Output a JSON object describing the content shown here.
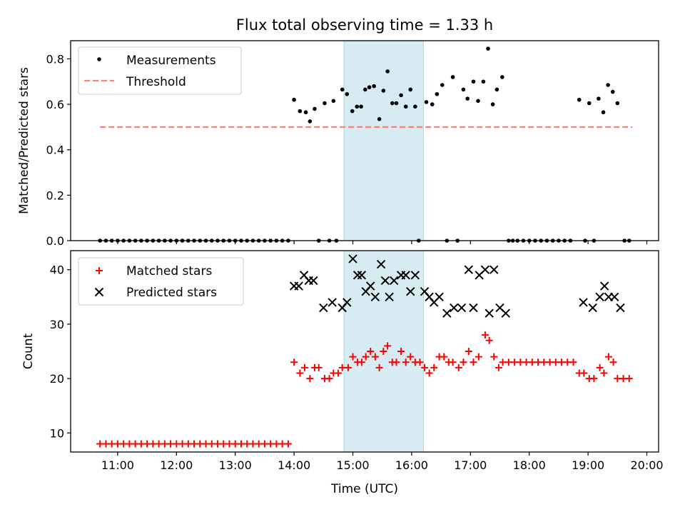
{
  "chart_data": {
    "title": "Flux total observing time = 1.33 h",
    "shade": {
      "x0": 14.85,
      "x1": 16.2,
      "color": "#add8e6"
    },
    "xlabel": "Time (UTC)",
    "xlim": [
      10.2,
      20.2
    ],
    "xticks": [
      {
        "v": 11,
        "label": "11:00"
      },
      {
        "v": 12,
        "label": "12:00"
      },
      {
        "v": 13,
        "label": "13:00"
      },
      {
        "v": 14,
        "label": "14:00"
      },
      {
        "v": 15,
        "label": "15:00"
      },
      {
        "v": 16,
        "label": "16:00"
      },
      {
        "v": 17,
        "label": "17:00"
      },
      {
        "v": 18,
        "label": "18:00"
      },
      {
        "v": 19,
        "label": "19:00"
      },
      {
        "v": 20,
        "label": "20:00"
      }
    ],
    "top_panel": {
      "type": "scatter",
      "ylabel": "Matched/Predicted stars",
      "ylim": [
        0,
        0.88
      ],
      "yticks": [
        {
          "v": 0,
          "label": "0.0"
        },
        {
          "v": 0.2,
          "label": "0.2"
        },
        {
          "v": 0.4,
          "label": "0.4"
        },
        {
          "v": 0.6,
          "label": "0.6"
        },
        {
          "v": 0.8,
          "label": "0.8"
        }
      ],
      "legend": {
        "placement": "upper-left",
        "measurements_label": "Measurements",
        "threshold_label": "Threshold"
      },
      "threshold": {
        "value": 0.5,
        "x_start": 10.7,
        "x_end": 19.75,
        "color": "#ff7f7f"
      },
      "measurements": [
        [
          10.7,
          0
        ],
        [
          10.8,
          0
        ],
        [
          10.9,
          0
        ],
        [
          11.0,
          0
        ],
        [
          11.1,
          0
        ],
        [
          11.2,
          0
        ],
        [
          11.3,
          0
        ],
        [
          11.4,
          0
        ],
        [
          11.5,
          0
        ],
        [
          11.6,
          0
        ],
        [
          11.7,
          0
        ],
        [
          11.8,
          0
        ],
        [
          11.9,
          0
        ],
        [
          12.0,
          0
        ],
        [
          12.1,
          0
        ],
        [
          12.2,
          0
        ],
        [
          12.3,
          0
        ],
        [
          12.4,
          0
        ],
        [
          12.5,
          0
        ],
        [
          12.6,
          0
        ],
        [
          12.7,
          0
        ],
        [
          12.8,
          0
        ],
        [
          12.9,
          0
        ],
        [
          13.0,
          0
        ],
        [
          13.1,
          0
        ],
        [
          13.2,
          0
        ],
        [
          13.3,
          0
        ],
        [
          13.4,
          0
        ],
        [
          13.5,
          0
        ],
        [
          13.6,
          0
        ],
        [
          13.7,
          0
        ],
        [
          13.8,
          0
        ],
        [
          13.9,
          0
        ],
        [
          14.0,
          0.62
        ],
        [
          14.1,
          0.57
        ],
        [
          14.2,
          0.565
        ],
        [
          14.27,
          0.525
        ],
        [
          14.35,
          0.58
        ],
        [
          14.42,
          0
        ],
        [
          14.52,
          0.605
        ],
        [
          14.6,
          0
        ],
        [
          14.67,
          0.615
        ],
        [
          14.72,
          0
        ],
        [
          14.82,
          0.665
        ],
        [
          14.9,
          0.645
        ],
        [
          14.99,
          0.57
        ],
        [
          15.07,
          0.59
        ],
        [
          15.14,
          0.59
        ],
        [
          15.21,
          0.665
        ],
        [
          15.28,
          0.675
        ],
        [
          15.36,
          0.68
        ],
        [
          15.45,
          0.535
        ],
        [
          15.52,
          0.66
        ],
        [
          15.59,
          0.745
        ],
        [
          15.67,
          0.605
        ],
        [
          15.74,
          0.605
        ],
        [
          15.82,
          0.64
        ],
        [
          15.9,
          0.59
        ],
        [
          15.98,
          0.665
        ],
        [
          16.06,
          0.59
        ],
        [
          16.12,
          0
        ],
        [
          16.25,
          0.61
        ],
        [
          16.35,
          0.6
        ],
        [
          16.43,
          0.645
        ],
        [
          16.52,
          0.685
        ],
        [
          16.6,
          0
        ],
        [
          16.7,
          0.72
        ],
        [
          16.78,
          0
        ],
        [
          16.88,
          0.665
        ],
        [
          16.95,
          0.625
        ],
        [
          17.05,
          0.7
        ],
        [
          17.13,
          0.615
        ],
        [
          17.22,
          0.7
        ],
        [
          17.3,
          0.845
        ],
        [
          17.38,
          0.6
        ],
        [
          17.45,
          0.665
        ],
        [
          17.54,
          0.72
        ],
        [
          17.65,
          0
        ],
        [
          17.72,
          0
        ],
        [
          17.8,
          0
        ],
        [
          17.9,
          0
        ],
        [
          18.0,
          0
        ],
        [
          18.1,
          0
        ],
        [
          18.2,
          0
        ],
        [
          18.3,
          0
        ],
        [
          18.4,
          0
        ],
        [
          18.5,
          0
        ],
        [
          18.6,
          0
        ],
        [
          18.7,
          0
        ],
        [
          18.85,
          0.62
        ],
        [
          18.95,
          0
        ],
        [
          19.02,
          0.605
        ],
        [
          19.1,
          0
        ],
        [
          19.18,
          0.625
        ],
        [
          19.26,
          0.565
        ],
        [
          19.34,
          0.685
        ],
        [
          19.42,
          0.655
        ],
        [
          19.5,
          0.605
        ],
        [
          19.62,
          0
        ],
        [
          19.7,
          0
        ]
      ]
    },
    "bottom_panel": {
      "type": "scatter",
      "ylabel": "Count",
      "ylim": [
        6.5,
        43.5
      ],
      "yticks": [
        {
          "v": 10,
          "label": "10"
        },
        {
          "v": 20,
          "label": "20"
        },
        {
          "v": 30,
          "label": "30"
        },
        {
          "v": 40,
          "label": "40"
        }
      ],
      "legend": {
        "placement": "upper-left",
        "matched_label": "Matched stars",
        "predicted_label": "Predicted stars"
      },
      "matched_color": "#ff0000",
      "predicted_color": "#000000",
      "matched": [
        [
          10.7,
          8
        ],
        [
          10.8,
          8
        ],
        [
          10.9,
          8
        ],
        [
          11.0,
          8
        ],
        [
          11.1,
          8
        ],
        [
          11.2,
          8
        ],
        [
          11.3,
          8
        ],
        [
          11.4,
          8
        ],
        [
          11.5,
          8
        ],
        [
          11.6,
          8
        ],
        [
          11.7,
          8
        ],
        [
          11.8,
          8
        ],
        [
          11.9,
          8
        ],
        [
          12.0,
          8
        ],
        [
          12.1,
          8
        ],
        [
          12.2,
          8
        ],
        [
          12.3,
          8
        ],
        [
          12.4,
          8
        ],
        [
          12.5,
          8
        ],
        [
          12.6,
          8
        ],
        [
          12.7,
          8
        ],
        [
          12.8,
          8
        ],
        [
          12.9,
          8
        ],
        [
          13.0,
          8
        ],
        [
          13.1,
          8
        ],
        [
          13.2,
          8
        ],
        [
          13.3,
          8
        ],
        [
          13.4,
          8
        ],
        [
          13.5,
          8
        ],
        [
          13.6,
          8
        ],
        [
          13.7,
          8
        ],
        [
          13.8,
          8
        ],
        [
          13.9,
          8
        ],
        [
          14.0,
          23
        ],
        [
          14.1,
          21
        ],
        [
          14.18,
          22
        ],
        [
          14.27,
          20
        ],
        [
          14.35,
          22
        ],
        [
          14.42,
          22
        ],
        [
          14.52,
          20
        ],
        [
          14.6,
          20
        ],
        [
          14.67,
          21
        ],
        [
          14.75,
          21
        ],
        [
          14.82,
          22
        ],
        [
          14.92,
          22
        ],
        [
          15.0,
          24
        ],
        [
          15.08,
          23
        ],
        [
          15.15,
          23
        ],
        [
          15.22,
          24
        ],
        [
          15.3,
          25
        ],
        [
          15.38,
          24
        ],
        [
          15.45,
          22
        ],
        [
          15.52,
          25
        ],
        [
          15.59,
          26
        ],
        [
          15.67,
          23
        ],
        [
          15.74,
          23
        ],
        [
          15.82,
          25
        ],
        [
          15.9,
          23
        ],
        [
          15.98,
          24
        ],
        [
          16.06,
          23
        ],
        [
          16.14,
          23
        ],
        [
          16.22,
          22
        ],
        [
          16.3,
          21
        ],
        [
          16.38,
          22
        ],
        [
          16.47,
          24
        ],
        [
          16.55,
          24
        ],
        [
          16.63,
          23
        ],
        [
          16.7,
          23
        ],
        [
          16.8,
          22
        ],
        [
          16.88,
          23
        ],
        [
          16.97,
          25
        ],
        [
          17.05,
          23
        ],
        [
          17.14,
          24
        ],
        [
          17.25,
          28
        ],
        [
          17.32,
          27
        ],
        [
          17.4,
          24
        ],
        [
          17.48,
          22
        ],
        [
          17.55,
          23
        ],
        [
          17.65,
          23
        ],
        [
          17.75,
          23
        ],
        [
          17.85,
          23
        ],
        [
          17.95,
          23
        ],
        [
          18.05,
          23
        ],
        [
          18.15,
          23
        ],
        [
          18.25,
          23
        ],
        [
          18.35,
          23
        ],
        [
          18.45,
          23
        ],
        [
          18.55,
          23
        ],
        [
          18.65,
          23
        ],
        [
          18.75,
          23
        ],
        [
          18.85,
          21
        ],
        [
          18.93,
          21
        ],
        [
          19.02,
          20
        ],
        [
          19.1,
          20
        ],
        [
          19.2,
          22
        ],
        [
          19.27,
          21
        ],
        [
          19.35,
          24
        ],
        [
          19.43,
          23
        ],
        [
          19.5,
          20
        ],
        [
          19.6,
          20
        ],
        [
          19.7,
          20
        ]
      ],
      "predicted": [
        [
          14.0,
          37
        ],
        [
          14.08,
          37
        ],
        [
          14.17,
          39
        ],
        [
          14.25,
          38
        ],
        [
          14.33,
          38
        ],
        [
          14.5,
          33
        ],
        [
          14.65,
          34
        ],
        [
          14.82,
          33
        ],
        [
          14.9,
          34
        ],
        [
          15.0,
          42
        ],
        [
          15.08,
          39
        ],
        [
          15.15,
          39
        ],
        [
          15.22,
          36
        ],
        [
          15.3,
          37
        ],
        [
          15.38,
          35
        ],
        [
          15.48,
          41
        ],
        [
          15.55,
          38
        ],
        [
          15.62,
          35
        ],
        [
          15.7,
          38
        ],
        [
          15.82,
          39
        ],
        [
          15.9,
          39
        ],
        [
          15.98,
          36
        ],
        [
          16.06,
          39
        ],
        [
          16.22,
          36
        ],
        [
          16.3,
          35
        ],
        [
          16.38,
          34
        ],
        [
          16.47,
          35
        ],
        [
          16.6,
          32
        ],
        [
          16.72,
          33
        ],
        [
          16.85,
          33
        ],
        [
          16.97,
          40
        ],
        [
          17.05,
          33
        ],
        [
          17.15,
          39
        ],
        [
          17.25,
          40
        ],
        [
          17.32,
          32
        ],
        [
          17.4,
          40
        ],
        [
          17.5,
          33
        ],
        [
          17.6,
          32
        ],
        [
          18.92,
          34
        ],
        [
          19.08,
          33
        ],
        [
          19.2,
          35
        ],
        [
          19.28,
          37
        ],
        [
          19.35,
          35
        ],
        [
          19.45,
          35
        ],
        [
          19.55,
          33
        ]
      ]
    }
  }
}
